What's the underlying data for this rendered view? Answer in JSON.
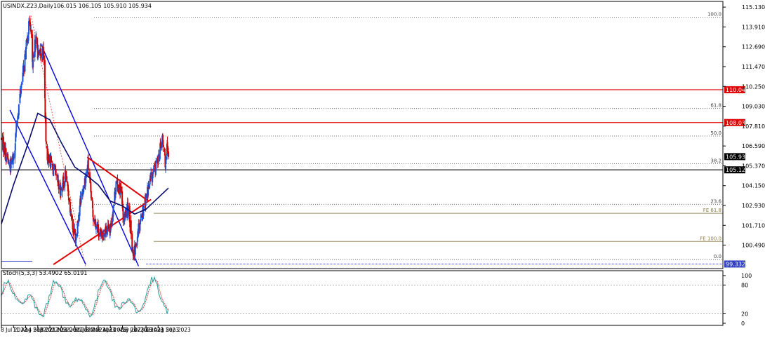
{
  "chart_data": [
    {
      "type": "candlestick",
      "symbol_label": "USINDX.Z23,Daily",
      "ohlc_label": "106.015 106.105 105.910 105.934",
      "y_ticks": [
        "115.130",
        "113.910",
        "112.690",
        "111.470",
        "110.250",
        "109.030",
        "107.810",
        "106.590",
        "105.370",
        "104.150",
        "102.930",
        "101.710",
        "100.490"
      ],
      "ylim": [
        99.332,
        115.13
      ],
      "x_ticks": [
        "8 Jul 2022",
        "11 Aug 2022",
        "14 Sep 2022",
        "18 Oct 2022",
        "21 Nov 2022",
        "23 Dec 2022",
        "30 Jan 2023",
        "3 Mar 2023",
        "6 Apr 2023",
        "10 May 2023",
        "13 Jun 2023",
        "17 Jul 2023",
        "18 Aug 2023",
        "21 Sep 2023"
      ],
      "price_anchors": [
        {
          "date": "8 Jul 2022",
          "close": 107.0
        },
        {
          "date": "1 Aug 2022",
          "close": 105.3
        },
        {
          "date": "11 Aug 2022",
          "close": 105.9
        },
        {
          "date": "28 Aug 2022",
          "close": 109.5
        },
        {
          "date": "27 Sep 2022",
          "close": 114.5
        },
        {
          "date": "4 Oct 2022",
          "close": 111.3
        },
        {
          "date": "12 Oct 2022",
          "close": 113.2
        },
        {
          "date": "21 Oct 2022",
          "close": 112.0
        },
        {
          "date": "3 Nov 2022",
          "close": 112.5
        },
        {
          "date": "11 Nov 2022",
          "close": 106.3
        },
        {
          "date": "30 Nov 2022",
          "close": 105.2
        },
        {
          "date": "20 Dec 2022",
          "close": 103.8
        },
        {
          "date": "5 Jan 2023",
          "close": 104.8
        },
        {
          "date": "26 Jan 2023",
          "close": 101.5
        },
        {
          "date": "2 Feb 2023",
          "close": 101.0
        },
        {
          "date": "13 Feb 2023",
          "close": 103.0
        },
        {
          "date": "8 Mar 2023",
          "close": 105.4
        },
        {
          "date": "22 Mar 2023",
          "close": 102.4
        },
        {
          "date": "14 Apr 2023",
          "close": 101.0
        },
        {
          "date": "26 Apr 2023",
          "close": 101.5
        },
        {
          "date": "10 May 2023",
          "close": 101.5
        },
        {
          "date": "26 May 2023",
          "close": 104.2
        },
        {
          "date": "7 Jun 2023",
          "close": 104.0
        },
        {
          "date": "16 Jun 2023",
          "close": 102.0
        },
        {
          "date": "30 Jun 2023",
          "close": 102.9
        },
        {
          "date": "14 Jul 2023",
          "close": 99.6
        },
        {
          "date": "27 Jul 2023",
          "close": 101.5
        },
        {
          "date": "18 Aug 2023",
          "close": 103.4
        },
        {
          "date": "31 Aug 2023",
          "close": 104.5
        },
        {
          "date": "15 Sep 2023",
          "close": 105.3
        },
        {
          "date": "3 Oct 2023",
          "close": 107.0
        },
        {
          "date": "12 Oct 2023",
          "close": 105.5
        },
        {
          "date": "16 Oct 2023",
          "close": 106.3
        },
        {
          "date": "20 Oct 2023",
          "close": 105.934
        }
      ],
      "moving_average": [
        {
          "date": "8 Jul 2022",
          "value": 101.8
        },
        {
          "date": "11 Aug 2022",
          "value": 104.2
        },
        {
          "date": "14 Sep 2022",
          "value": 106.3
        },
        {
          "date": "18 Oct 2022",
          "value": 108.6
        },
        {
          "date": "21 Nov 2022",
          "value": 108.2
        },
        {
          "date": "23 Dec 2022",
          "value": 106.8
        },
        {
          "date": "30 Jan 2023",
          "value": 105.3
        },
        {
          "date": "3 Mar 2023",
          "value": 104.8
        },
        {
          "date": "6 Apr 2023",
          "value": 104.2
        },
        {
          "date": "10 May 2023",
          "value": 103.2
        },
        {
          "date": "13 Jun 2023",
          "value": 102.9
        },
        {
          "date": "17 Jul 2023",
          "value": 102.4
        },
        {
          "date": "18 Aug 2023",
          "value": 102.7
        },
        {
          "date": "21 Sep 2023",
          "value": 103.4
        },
        {
          "date": "20 Oct 2023",
          "value": 104.0
        }
      ],
      "channel_lines": [
        {
          "name": "upper",
          "from": {
            "date": "26 Oct 2022",
            "price": 112.9
          },
          "to": {
            "date": "28 Jul 2023",
            "price": 99.2
          }
        },
        {
          "name": "lower",
          "from": {
            "date": "1 Aug 2022",
            "price": 108.8
          },
          "to": {
            "date": "2 Mar 2023",
            "price": 99.3
          }
        }
      ],
      "trend_lines": [
        {
          "name": "resistance",
          "from": {
            "date": "6 Mar 2023",
            "price": 105.9
          },
          "to": {
            "date": "25 Aug 2023",
            "price": 103.2
          }
        },
        {
          "name": "support",
          "from": {
            "date": "1 Dec 2022",
            "price": 99.3
          },
          "to": {
            "date": "1 Sep 2023",
            "price": 103.3
          }
        }
      ],
      "fib_levels": [
        {
          "label": "100.0",
          "price": 114.5
        },
        {
          "label": "61.8",
          "price": 108.9
        },
        {
          "label": "50.0",
          "price": 107.2
        },
        {
          "label": "38.2",
          "price": 105.5
        },
        {
          "label": "23.6",
          "price": 103.0
        },
        {
          "label": "0.0",
          "price": 99.6
        }
      ],
      "fe_levels": [
        {
          "label": "FE 61.8",
          "price": 102.45
        },
        {
          "label": "FE 100.0",
          "price": 100.72
        }
      ],
      "horizontal_lines": [
        {
          "price": 110.049,
          "label": "110.049",
          "color": "#e00000"
        },
        {
          "price": 108.03,
          "label": "108.030",
          "color": "#e00000"
        },
        {
          "price": 105.122,
          "label": "105.122",
          "color": "#000000"
        }
      ],
      "current_price": {
        "price": 105.934,
        "label": "105.934"
      },
      "low_marker": {
        "price": 99.332,
        "label": "99.332"
      },
      "colors": {
        "bull": "#1a4fd6",
        "bear": "#d00000",
        "ma": "#0a0a6e",
        "channel": "#0000e0",
        "trend": "#e00000",
        "fib": "#707070",
        "fe": "#a09060"
      }
    },
    {
      "type": "line",
      "name": "stochastic",
      "label": "Stoch(5,3,3) 53.4902 65.0191",
      "y_ticks": [
        "100",
        "80",
        "20",
        "0"
      ],
      "ylim": [
        0,
        100
      ],
      "levels": [
        80,
        20
      ],
      "main_color": "#20a0a0",
      "signal_color": "#d04040"
    }
  ]
}
